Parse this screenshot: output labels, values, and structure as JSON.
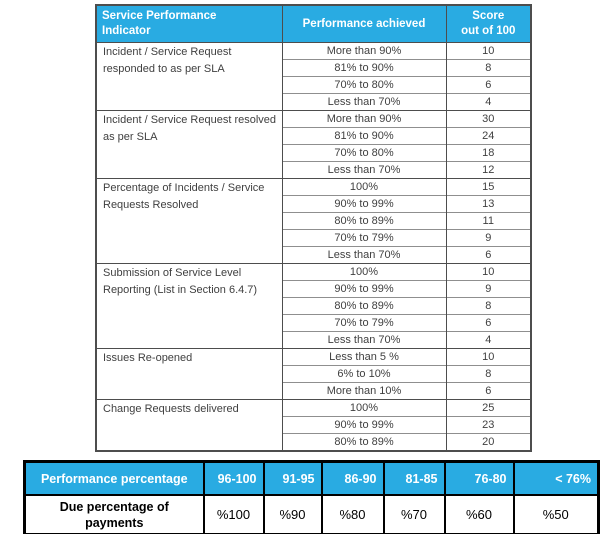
{
  "colors": {
    "header_blue": "#29ABE2",
    "table_text": "#3f3f3f",
    "grid_dark": "#4d4d4d",
    "grid_light": "#8f8f8f"
  },
  "sla_table": {
    "headers": {
      "indicator": "Service Performance\nIndicator",
      "performance": "Performance achieved",
      "score": "Score\nout of 100"
    },
    "groups": [
      {
        "indicator": "Incident / Service Request responded to as per SLA",
        "rows": [
          {
            "performance": "More than 90%",
            "score": "10"
          },
          {
            "performance": "81% to 90%",
            "score": "8"
          },
          {
            "performance": "70% to 80%",
            "score": "6"
          },
          {
            "performance": "Less than 70%",
            "score": "4"
          }
        ]
      },
      {
        "indicator": "Incident / Service Request resolved as per SLA",
        "rows": [
          {
            "performance": "More than 90%",
            "score": "30"
          },
          {
            "performance": "81% to 90%",
            "score": "24"
          },
          {
            "performance": "70% to 80%",
            "score": "18"
          },
          {
            "performance": "Less than 70%",
            "score": "12"
          }
        ]
      },
      {
        "indicator": "Percentage of Incidents / Service Requests Resolved",
        "rows": [
          {
            "performance": "100%",
            "score": "15"
          },
          {
            "performance": "90% to 99%",
            "score": "13"
          },
          {
            "performance": "80% to 89%",
            "score": "11"
          },
          {
            "performance": "70% to 79%",
            "score": "9"
          },
          {
            "performance": "Less than 70%",
            "score": "6"
          }
        ]
      },
      {
        "indicator": "Submission of Service Level Reporting (List in Section 6.4.7)",
        "rows": [
          {
            "performance": "100%",
            "score": "10"
          },
          {
            "performance": "90% to 99%",
            "score": "9"
          },
          {
            "performance": "80% to 89%",
            "score": "8"
          },
          {
            "performance": "70% to 79%",
            "score": "6"
          },
          {
            "performance": "Less than 70%",
            "score": "4"
          }
        ]
      },
      {
        "indicator": "Issues Re-opened",
        "rows": [
          {
            "performance": "Less than 5 %",
            "score": "10"
          },
          {
            "performance": "6% to 10%",
            "score": "8"
          },
          {
            "performance": "More than 10%",
            "score": "6"
          }
        ]
      },
      {
        "indicator": "Change Requests delivered",
        "rows": [
          {
            "performance": "100%",
            "score": "25"
          },
          {
            "performance": "90% to 99%",
            "score": "23"
          },
          {
            "performance": "80% to 89%",
            "score": "20"
          }
        ]
      }
    ]
  },
  "payment_table": {
    "row1_label": "Performance percentage",
    "row2_label": "Due percentage of\npayments",
    "ranges": [
      "96-100",
      "91-95",
      "86-90",
      "81-85",
      "76-80",
      "< 76%"
    ],
    "payments": [
      "%100",
      "%90",
      "%80",
      "%70",
      "%60",
      "%50"
    ]
  }
}
